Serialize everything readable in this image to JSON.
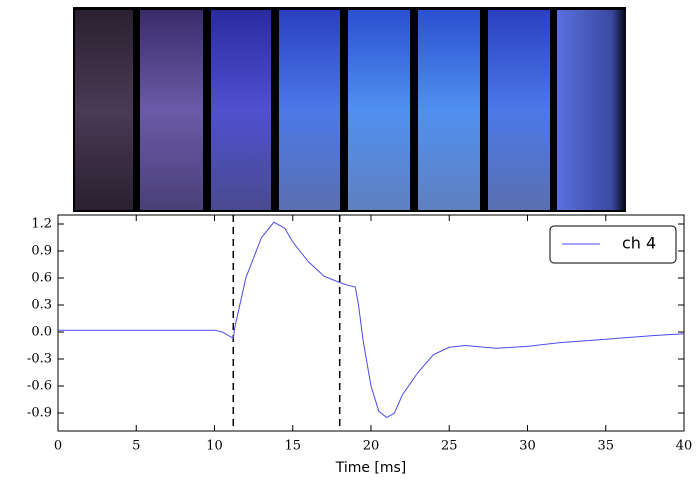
{
  "chart_data": {
    "type": "line",
    "xlabel": "Time [ms]",
    "x": [
      0,
      5,
      10,
      10.5,
      11,
      11.2,
      11.3,
      12,
      13,
      13.8,
      14.5,
      15,
      16,
      17,
      18,
      18.5,
      19,
      19.2,
      19.5,
      20,
      20.5,
      21,
      21.5,
      22,
      23,
      24,
      25,
      26,
      28,
      30,
      32,
      35,
      38,
      40
    ],
    "series": [
      {
        "name": "ch 4",
        "color": "#4a4af0",
        "values": [
          0.02,
          0.02,
          0.02,
          0.0,
          -0.05,
          -0.07,
          0.05,
          0.6,
          1.05,
          1.22,
          1.15,
          1.0,
          0.78,
          0.62,
          0.55,
          0.52,
          0.5,
          0.3,
          -0.1,
          -0.6,
          -0.88,
          -0.95,
          -0.9,
          -0.7,
          -0.45,
          -0.25,
          -0.17,
          -0.15,
          -0.18,
          -0.16,
          -0.12,
          -0.08,
          -0.04,
          -0.02
        ]
      }
    ],
    "xlim": [
      0,
      40
    ],
    "xticks": [
      0,
      5,
      10,
      15,
      20,
      25,
      30,
      35,
      40
    ],
    "ylim": [
      -1.1,
      1.3
    ],
    "yticks": [
      -0.9,
      -0.6,
      -0.3,
      {
        "value": 0,
        "label": "0.0"
      },
      0.3,
      0.6,
      0.9,
      1.2
    ],
    "vlines": [
      11.2,
      18.0
    ],
    "legend": "upper right"
  }
}
